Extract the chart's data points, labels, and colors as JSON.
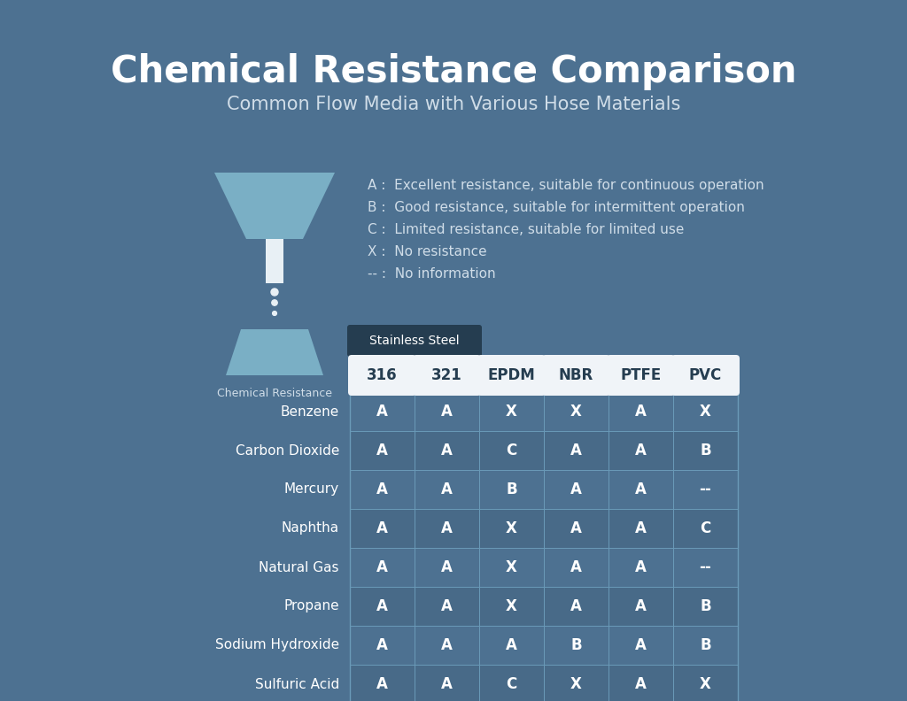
{
  "title": "Chemical Resistance Comparison",
  "subtitle": "Common Flow Media with Various Hose Materials",
  "background_color": "#4d7191",
  "legend_items": [
    "A :  Excellent resistance, suitable for continuous operation",
    "B :  Good resistance, suitable for intermittent operation",
    "C :  Limited resistance, suitable for limited use",
    "X :  No resistance",
    "-- :  No information"
  ],
  "icon_label": "Chemical Resistance",
  "group_header": "Stainless Steel",
  "columns": [
    "316",
    "321",
    "EPDM",
    "NBR",
    "PTFE",
    "PVC"
  ],
  "rows": [
    "Benzene",
    "Carbon Dioxide",
    "Mercury",
    "Naphtha",
    "Natural Gas",
    "Propane",
    "Sodium Hydroxide",
    "Sulfuric Acid"
  ],
  "table_data": [
    [
      "A",
      "A",
      "X",
      "X",
      "A",
      "X"
    ],
    [
      "A",
      "A",
      "C",
      "A",
      "A",
      "B"
    ],
    [
      "A",
      "A",
      "B",
      "A",
      "A",
      "--"
    ],
    [
      "A",
      "A",
      "X",
      "A",
      "A",
      "C"
    ],
    [
      "A",
      "A",
      "X",
      "A",
      "A",
      "--"
    ],
    [
      "A",
      "A",
      "X",
      "A",
      "A",
      "B"
    ],
    [
      "A",
      "A",
      "A",
      "B",
      "A",
      "B"
    ],
    [
      "A",
      "A",
      "C",
      "X",
      "A",
      "X"
    ]
  ],
  "header_bg_color": "#253d50",
  "header_text_color": "#ffffff",
  "col_header_bg": "#f0f4f8",
  "col_header_text": "#253d50",
  "group_header_bg_color": "#253d50",
  "row_bg_color": "#4d7191",
  "cell_text_color": "#ffffff",
  "row_label_color": "#ffffff",
  "table_border_color": "#6a9ab8",
  "title_color": "#ffffff",
  "subtitle_color": "#d0dde8",
  "legend_color": "#d0dde8",
  "icon_color": "#7aafc5",
  "icon_dark": "#5a90aa"
}
